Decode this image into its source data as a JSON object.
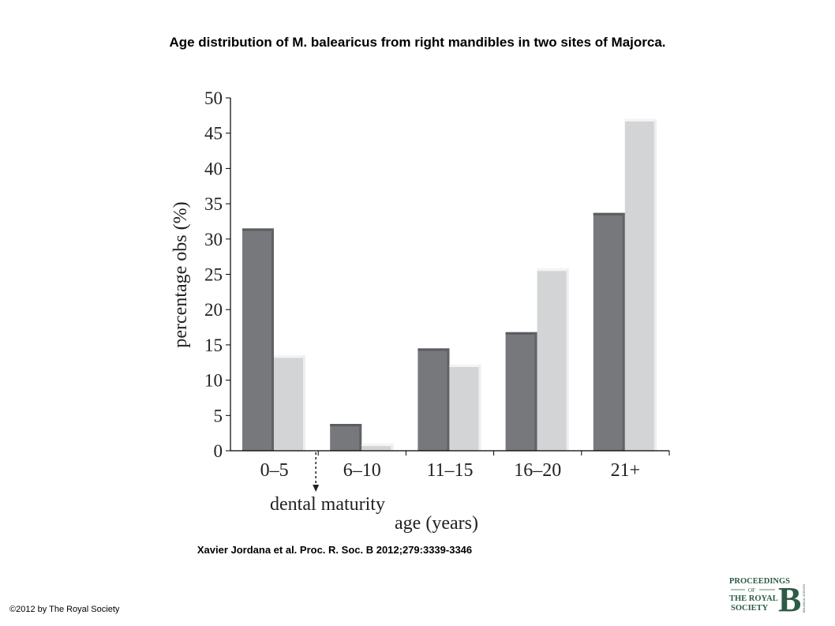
{
  "slide": {
    "title": "Age distribution of M. balearicus from right mandibles in two sites of Majorca.",
    "citation": "Xavier Jordana et al. Proc. R. Soc. B 2012;279:3339-3346",
    "copyright": "©2012 by The Royal Society"
  },
  "logo": {
    "line1": "PROCEEDINGS",
    "line2": "OF",
    "line3": "THE ROYAL",
    "line4": "SOCIETY",
    "letter": "B",
    "side_text": "BIOLOGICAL SCIENCES",
    "color": "#2e5b45"
  },
  "chart_data": {
    "type": "bar",
    "categories": [
      "0–5",
      "6–10",
      "11–15",
      "16–20",
      "21+"
    ],
    "series": [
      {
        "values": [
          31.5,
          3.8,
          14.5,
          16.8,
          33.7
        ],
        "color": "#76787c"
      },
      {
        "values": [
          13.5,
          1.0,
          12.2,
          25.8,
          47.0
        ],
        "color": "#d3d4d6"
      }
    ],
    "xlabel": "age (years)",
    "ylabel": "percentage obs (%)",
    "ylim": [
      0,
      50
    ],
    "yticks": [
      "0",
      "5",
      "10",
      "15",
      "20",
      "25",
      "30",
      "35",
      "40",
      "45",
      "50"
    ],
    "annotation": "dental maturity",
    "grid": false,
    "legend": false
  }
}
